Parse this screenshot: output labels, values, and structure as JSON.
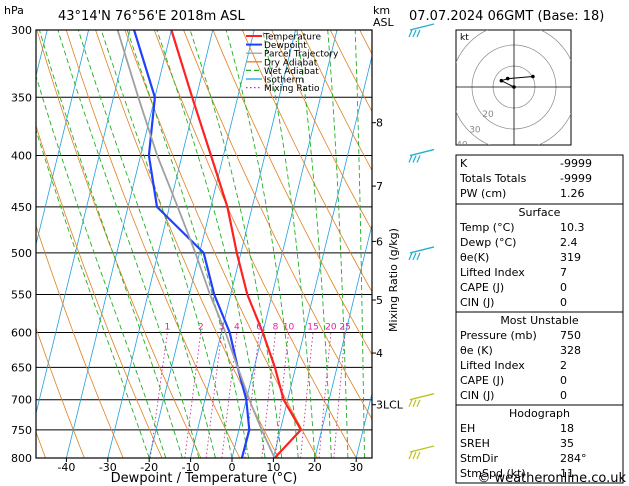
{
  "header": {
    "pressure_unit": "hPa",
    "location": "43°14'N  76°56'E  2018m  ASL",
    "height_unit_1": "km",
    "height_unit_2": "ASL",
    "datetime": "07.07.2024  06GMT  (Base: 18)"
  },
  "chart_data": {
    "type": "line",
    "title": "43°14'N  76°56'E  2018m  ASL",
    "xlabel": "Dewpoint / Temperature (°C)",
    "ylabel": "hPa",
    "secondary_ylabel": "Mixing Ratio (g/kg)",
    "x_ticks": [
      -40,
      -30,
      -20,
      -10,
      0,
      10,
      20,
      30
    ],
    "pressure_levels": [
      300,
      350,
      400,
      450,
      500,
      550,
      600,
      650,
      700,
      750,
      800
    ],
    "ylim": [
      800,
      300
    ],
    "xlim": [
      -45,
      34
    ],
    "km_ticks": [
      {
        "p": 371,
        "label": "8"
      },
      {
        "p": 429,
        "label": "7"
      },
      {
        "p": 487,
        "label": "6"
      },
      {
        "p": 557,
        "label": "5"
      },
      {
        "p": 629,
        "label": "4"
      },
      {
        "p": 708,
        "label": "3LCL"
      }
    ],
    "mixing_ratio_labels": [
      "1",
      "2",
      "3",
      "4",
      "6",
      "8",
      "10",
      "15",
      "20",
      "25"
    ],
    "mixing_ratio_values": [
      1,
      2,
      3,
      4,
      6,
      8,
      10,
      15,
      20,
      25
    ],
    "legend": [
      "Temperature",
      "Dewpoint",
      "Parcel Trajectory",
      "Dry Adiabat",
      "Wet Adiabat",
      "Isotherm",
      "Mixing Ratio"
    ],
    "legend_placement": "top-left",
    "series": [
      {
        "name": "Temperature",
        "points": [
          [
            800,
            10.3
          ],
          [
            750,
            15
          ],
          [
            700,
            9
          ],
          [
            650,
            5
          ],
          [
            600,
            0
          ],
          [
            550,
            -6
          ],
          [
            500,
            -11
          ],
          [
            450,
            -16
          ],
          [
            400,
            -23
          ],
          [
            350,
            -31
          ],
          [
            300,
            -40
          ]
        ]
      },
      {
        "name": "Dewpoint",
        "points": [
          [
            800,
            2.4
          ],
          [
            750,
            2.5
          ],
          [
            700,
            0
          ],
          [
            650,
            -4
          ],
          [
            600,
            -8
          ],
          [
            550,
            -14
          ],
          [
            500,
            -19
          ],
          [
            450,
            -33
          ],
          [
            400,
            -38
          ],
          [
            350,
            -40
          ],
          [
            300,
            -49
          ]
        ]
      },
      {
        "name": "Parcel Trajectory",
        "points": [
          [
            800,
            10.3
          ],
          [
            750,
            5.5
          ],
          [
            708,
            1.5
          ],
          [
            650,
            -4
          ],
          [
            600,
            -9
          ],
          [
            550,
            -15
          ],
          [
            500,
            -21
          ],
          [
            450,
            -28
          ],
          [
            400,
            -36
          ],
          [
            350,
            -44
          ],
          [
            300,
            -53
          ]
        ]
      }
    ],
    "wind_barb_levels": [
      300,
      400,
      500,
      700,
      800
    ]
  },
  "hodograph": {
    "unit": "kt",
    "rings": [
      "10",
      "20",
      "30",
      "40"
    ],
    "points_kt": [
      [
        0,
        0
      ],
      [
        -6,
        3
      ],
      [
        -3,
        4
      ],
      [
        9,
        5
      ]
    ]
  },
  "indices": {
    "top": [
      {
        "k": "K",
        "v": "-9999"
      },
      {
        "k": "Totals Totals",
        "v": "-9999"
      },
      {
        "k": "PW (cm)",
        "v": "1.26"
      }
    ],
    "surface_title": "Surface",
    "surface": [
      {
        "k": "Temp (°C)",
        "v": "10.3"
      },
      {
        "k": "Dewp (°C)",
        "v": "2.4"
      },
      {
        "k": "θe(K)",
        "v": "319"
      },
      {
        "k": "Lifted Index",
        "v": "7"
      },
      {
        "k": "CAPE (J)",
        "v": "0"
      },
      {
        "k": "CIN (J)",
        "v": "0"
      }
    ],
    "unstable_title": "Most Unstable",
    "unstable": [
      {
        "k": "Pressure (mb)",
        "v": "750"
      },
      {
        "k": "θe (K)",
        "v": "328"
      },
      {
        "k": "Lifted Index",
        "v": "2"
      },
      {
        "k": "CAPE (J)",
        "v": "0"
      },
      {
        "k": "CIN (J)",
        "v": "0"
      }
    ],
    "hodo_title": "Hodograph",
    "hodo": [
      {
        "k": "EH",
        "v": "18"
      },
      {
        "k": "SREH",
        "v": "35"
      },
      {
        "k": "StmDir",
        "v": "284°"
      },
      {
        "k": "StmSpd (kt)",
        "v": "11"
      }
    ]
  },
  "footer": {
    "copyright": "© weatheronline.co.uk"
  },
  "colors": {
    "temperature": "#ff2020",
    "dewpoint": "#2040ff",
    "parcel": "#a0a0a0",
    "dry_adiabat": "#e08020",
    "wet_adiabat": "#20b020",
    "isotherm": "#20a0e0",
    "mixing_ratio": "#e020a0",
    "wind_barb": "#20b0d0"
  }
}
